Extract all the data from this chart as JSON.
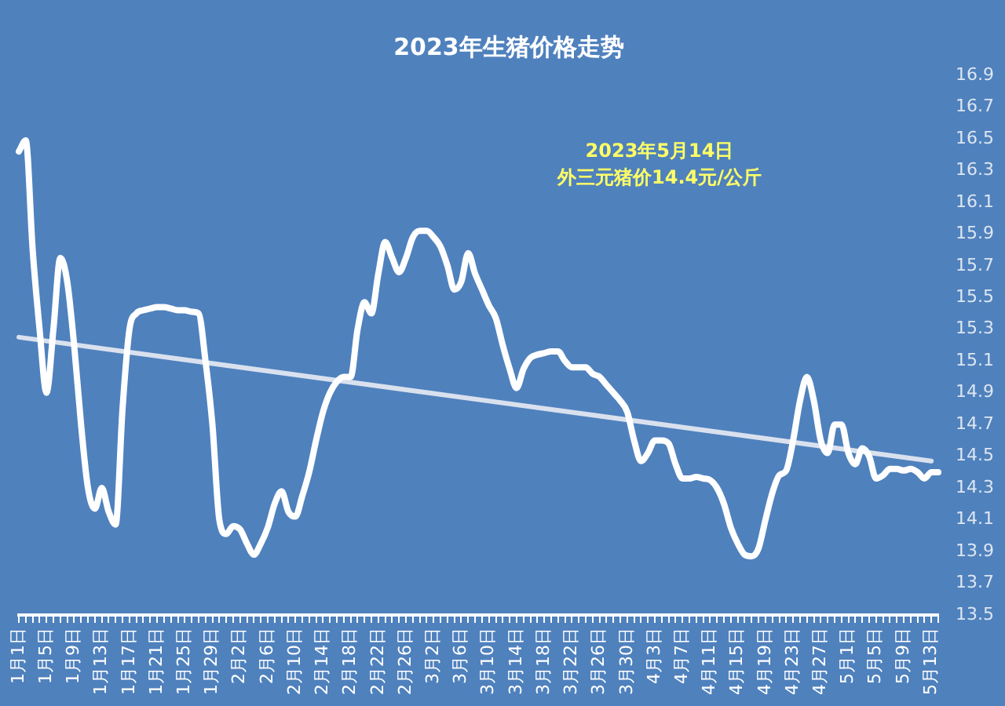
{
  "chart_data": {
    "type": "line",
    "title": "2023年生猪价格走势",
    "annotations": [
      "2023年5月14日",
      "外三元猪价14.4元/公斤"
    ],
    "categories": [
      "1月1日",
      null,
      null,
      null,
      "1月5日",
      null,
      null,
      null,
      "1月9日",
      null,
      null,
      null,
      "1月13日",
      null,
      null,
      null,
      "1月17日",
      null,
      null,
      null,
      "1月21日",
      null,
      null,
      null,
      "1月25日",
      null,
      null,
      null,
      "1月29日",
      null,
      null,
      null,
      "2月2日",
      null,
      null,
      null,
      "2月6日",
      null,
      null,
      null,
      "2月10日",
      null,
      null,
      null,
      "2月14日",
      null,
      null,
      null,
      "2月18日",
      null,
      null,
      null,
      "2月22日",
      null,
      null,
      null,
      "2月26日",
      null,
      null,
      null,
      "3月2日",
      null,
      null,
      null,
      "3月6日",
      null,
      null,
      null,
      "3月10日",
      null,
      null,
      null,
      "3月14日",
      null,
      null,
      null,
      "3月18日",
      null,
      null,
      null,
      "3月22日",
      null,
      null,
      null,
      "3月26日",
      null,
      null,
      null,
      "3月30日",
      null,
      null,
      null,
      "4月3日",
      null,
      null,
      null,
      "4月7日",
      null,
      null,
      null,
      "4月11日",
      null,
      null,
      null,
      "4月15日",
      null,
      null,
      null,
      "4月19日",
      null,
      null,
      null,
      "4月23日",
      null,
      null,
      null,
      "4月27日",
      null,
      null,
      null,
      "5月1日",
      null,
      null,
      null,
      "5月5日",
      null,
      null,
      null,
      "5月9日",
      null,
      null,
      null,
      "5月13日",
      null
    ],
    "series": [
      {
        "type": "line",
        "color": "#ffffff",
        "values": [
          16.42,
          16.49,
          15.8,
          15.3,
          14.9,
          15.3,
          15.75,
          15.6,
          15.2,
          14.7,
          14.3,
          14.17,
          14.3,
          14.15,
          14.07,
          14.8,
          15.3,
          15.4,
          15.42,
          15.43,
          15.44,
          15.44,
          15.43,
          15.42,
          15.42,
          15.41,
          15.4,
          15.1,
          14.7,
          14.1,
          14.01,
          14.06,
          14.04,
          13.95,
          13.88,
          13.95,
          14.05,
          14.2,
          14.28,
          14.15,
          14.12,
          14.25,
          14.4,
          14.6,
          14.78,
          14.9,
          14.97,
          15.0,
          15.0,
          15.3,
          15.47,
          15.4,
          15.65,
          15.85,
          15.75,
          15.66,
          15.75,
          15.88,
          15.92,
          15.92,
          15.88,
          15.82,
          15.7,
          15.55,
          15.6,
          15.78,
          15.65,
          15.55,
          15.45,
          15.37,
          15.2,
          15.05,
          14.93,
          15.05,
          15.12,
          15.14,
          15.15,
          15.16,
          15.16,
          15.1,
          15.06,
          15.06,
          15.06,
          15.02,
          15.0,
          14.95,
          14.9,
          14.85,
          14.78,
          14.6,
          14.47,
          14.52,
          14.6,
          14.6,
          14.58,
          14.45,
          14.36,
          14.36,
          14.37,
          14.36,
          14.35,
          14.3,
          14.2,
          14.05,
          13.95,
          13.88,
          13.87,
          13.92,
          14.1,
          14.27,
          14.38,
          14.41,
          14.6,
          14.85,
          15.0,
          14.85,
          14.6,
          14.52,
          14.7,
          14.7,
          14.52,
          14.45,
          14.55,
          14.5,
          14.36,
          14.38,
          14.42,
          14.42,
          14.41,
          14.42,
          14.4,
          14.36,
          14.4,
          14.4
        ]
      },
      {
        "type": "line",
        "color": "#d9e1ee",
        "x": [
          "1月1日",
          "5月13日"
        ],
        "values": [
          15.25,
          14.47
        ]
      }
    ],
    "ylim": [
      13.5,
      16.9
    ],
    "yticks": [
      13.5,
      13.7,
      13.9,
      14.1,
      14.3,
      14.5,
      14.7,
      14.9,
      15.1,
      15.3,
      15.5,
      15.7,
      15.9,
      16.1,
      16.3,
      16.5,
      16.7,
      16.9
    ],
    "grid": false,
    "legend": false,
    "marker": "none",
    "line_style": "solid"
  }
}
